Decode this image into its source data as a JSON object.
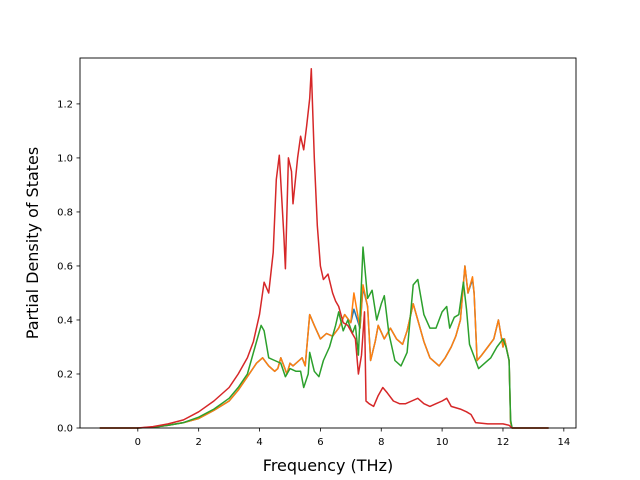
{
  "chart_data": {
    "type": "line",
    "xlabel": "Frequency (THz)",
    "ylabel": "Partial Density of States",
    "xlim": [
      -1.9,
      14.4
    ],
    "ylim": [
      0,
      1.37
    ],
    "xticks": [
      0,
      2,
      4,
      6,
      8,
      10,
      12,
      14
    ],
    "yticks": [
      0.0,
      0.2,
      0.4,
      0.6,
      0.8,
      1.0,
      1.2
    ],
    "xtick_labels": [
      "0",
      "2",
      "4",
      "6",
      "8",
      "10",
      "12",
      "14"
    ],
    "ytick_labels": [
      "0.0",
      "0.2",
      "0.4",
      "0.6",
      "0.8",
      "1.0",
      "1.2"
    ],
    "grid": false,
    "legend": "none",
    "series": [
      {
        "color": "#1f77b4",
        "points": [
          [
            -1.25,
            0
          ],
          [
            0,
            0
          ],
          [
            0.5,
            0.003
          ],
          [
            1,
            0.01
          ],
          [
            1.5,
            0.02
          ],
          [
            2,
            0.035
          ],
          [
            2.5,
            0.065
          ],
          [
            3,
            0.1
          ],
          [
            3.3,
            0.14
          ],
          [
            3.6,
            0.19
          ],
          [
            3.9,
            0.24
          ],
          [
            4.1,
            0.26
          ],
          [
            4.3,
            0.23
          ],
          [
            4.5,
            0.21
          ],
          [
            4.6,
            0.22
          ],
          [
            4.7,
            0.26
          ],
          [
            4.8,
            0.23
          ],
          [
            4.9,
            0.2
          ],
          [
            5.0,
            0.24
          ],
          [
            5.1,
            0.23
          ],
          [
            5.3,
            0.25
          ],
          [
            5.4,
            0.26
          ],
          [
            5.5,
            0.23
          ],
          [
            5.65,
            0.42
          ],
          [
            5.8,
            0.38
          ],
          [
            6.0,
            0.33
          ],
          [
            6.2,
            0.35
          ],
          [
            6.4,
            0.34
          ],
          [
            6.6,
            0.37
          ],
          [
            6.8,
            0.42
          ],
          [
            7.0,
            0.39
          ],
          [
            7.1,
            0.44
          ],
          [
            7.3,
            0.37
          ],
          [
            7.4,
            0.52
          ],
          [
            7.55,
            0.45
          ],
          [
            7.65,
            0.25
          ],
          [
            7.8,
            0.32
          ],
          [
            7.9,
            0.38
          ],
          [
            8.1,
            0.33
          ],
          [
            8.3,
            0.37
          ],
          [
            8.5,
            0.33
          ],
          [
            8.7,
            0.31
          ],
          [
            8.85,
            0.36
          ],
          [
            9.05,
            0.46
          ],
          [
            9.2,
            0.4
          ],
          [
            9.4,
            0.32
          ],
          [
            9.6,
            0.26
          ],
          [
            9.9,
            0.23
          ],
          [
            10.1,
            0.26
          ],
          [
            10.3,
            0.3
          ],
          [
            10.45,
            0.34
          ],
          [
            10.6,
            0.4
          ],
          [
            10.75,
            0.6
          ],
          [
            10.85,
            0.5
          ],
          [
            11.0,
            0.55
          ],
          [
            11.05,
            0.5
          ],
          [
            11.15,
            0.25
          ],
          [
            11.3,
            0.27
          ],
          [
            11.5,
            0.3
          ],
          [
            11.7,
            0.33
          ],
          [
            11.85,
            0.4
          ],
          [
            12.0,
            0.3
          ],
          [
            12.05,
            0.33
          ],
          [
            12.2,
            0.25
          ],
          [
            12.25,
            0.02
          ],
          [
            12.3,
            0.0
          ],
          [
            13.5,
            0.0
          ]
        ]
      },
      {
        "color": "#ff7f0e",
        "points": [
          [
            -1.25,
            0
          ],
          [
            0,
            0
          ],
          [
            0.5,
            0.003
          ],
          [
            1,
            0.01
          ],
          [
            1.5,
            0.02
          ],
          [
            2,
            0.035
          ],
          [
            2.5,
            0.065
          ],
          [
            3,
            0.1
          ],
          [
            3.3,
            0.14
          ],
          [
            3.6,
            0.19
          ],
          [
            3.9,
            0.24
          ],
          [
            4.1,
            0.26
          ],
          [
            4.3,
            0.23
          ],
          [
            4.5,
            0.21
          ],
          [
            4.6,
            0.22
          ],
          [
            4.7,
            0.26
          ],
          [
            4.8,
            0.23
          ],
          [
            4.9,
            0.2
          ],
          [
            5.0,
            0.24
          ],
          [
            5.1,
            0.23
          ],
          [
            5.3,
            0.25
          ],
          [
            5.4,
            0.26
          ],
          [
            5.5,
            0.23
          ],
          [
            5.65,
            0.42
          ],
          [
            5.8,
            0.38
          ],
          [
            6.0,
            0.33
          ],
          [
            6.2,
            0.35
          ],
          [
            6.4,
            0.34
          ],
          [
            6.6,
            0.37
          ],
          [
            6.8,
            0.42
          ],
          [
            7.0,
            0.39
          ],
          [
            7.1,
            0.5
          ],
          [
            7.3,
            0.37
          ],
          [
            7.4,
            0.53
          ],
          [
            7.55,
            0.45
          ],
          [
            7.65,
            0.25
          ],
          [
            7.8,
            0.32
          ],
          [
            7.9,
            0.38
          ],
          [
            8.1,
            0.33
          ],
          [
            8.3,
            0.37
          ],
          [
            8.5,
            0.33
          ],
          [
            8.7,
            0.31
          ],
          [
            8.85,
            0.36
          ],
          [
            9.05,
            0.46
          ],
          [
            9.2,
            0.4
          ],
          [
            9.4,
            0.32
          ],
          [
            9.6,
            0.26
          ],
          [
            9.9,
            0.23
          ],
          [
            10.1,
            0.26
          ],
          [
            10.3,
            0.3
          ],
          [
            10.45,
            0.34
          ],
          [
            10.6,
            0.4
          ],
          [
            10.75,
            0.6
          ],
          [
            10.85,
            0.5
          ],
          [
            11.0,
            0.56
          ],
          [
            11.05,
            0.5
          ],
          [
            11.15,
            0.25
          ],
          [
            11.3,
            0.27
          ],
          [
            11.5,
            0.3
          ],
          [
            11.7,
            0.33
          ],
          [
            11.85,
            0.4
          ],
          [
            12.0,
            0.3
          ],
          [
            12.05,
            0.33
          ],
          [
            12.2,
            0.25
          ],
          [
            12.25,
            0.02
          ],
          [
            12.3,
            0.0
          ],
          [
            13.5,
            0.0
          ]
        ]
      },
      {
        "color": "#2ca02c",
        "points": [
          [
            -1.25,
            0
          ],
          [
            0,
            0
          ],
          [
            0.5,
            0.003
          ],
          [
            1,
            0.01
          ],
          [
            1.5,
            0.02
          ],
          [
            2,
            0.04
          ],
          [
            2.5,
            0.07
          ],
          [
            3,
            0.11
          ],
          [
            3.3,
            0.15
          ],
          [
            3.6,
            0.2
          ],
          [
            3.85,
            0.3
          ],
          [
            4.05,
            0.38
          ],
          [
            4.15,
            0.36
          ],
          [
            4.3,
            0.26
          ],
          [
            4.5,
            0.25
          ],
          [
            4.7,
            0.24
          ],
          [
            4.85,
            0.19
          ],
          [
            5.0,
            0.22
          ],
          [
            5.2,
            0.21
          ],
          [
            5.35,
            0.21
          ],
          [
            5.45,
            0.15
          ],
          [
            5.6,
            0.2
          ],
          [
            5.65,
            0.28
          ],
          [
            5.8,
            0.21
          ],
          [
            5.95,
            0.19
          ],
          [
            6.1,
            0.25
          ],
          [
            6.3,
            0.3
          ],
          [
            6.5,
            0.38
          ],
          [
            6.6,
            0.43
          ],
          [
            6.75,
            0.36
          ],
          [
            6.9,
            0.4
          ],
          [
            7.05,
            0.35
          ],
          [
            7.15,
            0.38
          ],
          [
            7.25,
            0.27
          ],
          [
            7.4,
            0.67
          ],
          [
            7.55,
            0.48
          ],
          [
            7.7,
            0.51
          ],
          [
            7.85,
            0.4
          ],
          [
            8.0,
            0.46
          ],
          [
            8.1,
            0.49
          ],
          [
            8.25,
            0.35
          ],
          [
            8.45,
            0.25
          ],
          [
            8.65,
            0.23
          ],
          [
            8.85,
            0.28
          ],
          [
            9.05,
            0.53
          ],
          [
            9.2,
            0.55
          ],
          [
            9.4,
            0.42
          ],
          [
            9.6,
            0.37
          ],
          [
            9.8,
            0.37
          ],
          [
            10.0,
            0.43
          ],
          [
            10.15,
            0.45
          ],
          [
            10.25,
            0.37
          ],
          [
            10.4,
            0.41
          ],
          [
            10.55,
            0.42
          ],
          [
            10.7,
            0.54
          ],
          [
            10.8,
            0.44
          ],
          [
            10.9,
            0.31
          ],
          [
            11.1,
            0.25
          ],
          [
            11.2,
            0.22
          ],
          [
            11.4,
            0.24
          ],
          [
            11.6,
            0.26
          ],
          [
            11.8,
            0.3
          ],
          [
            12.0,
            0.33
          ],
          [
            12.1,
            0.3
          ],
          [
            12.2,
            0.25
          ],
          [
            12.25,
            0.03
          ],
          [
            12.3,
            0.0
          ],
          [
            13.5,
            0.0
          ]
        ]
      },
      {
        "color": "#d62728",
        "points": [
          [
            -1.25,
            0
          ],
          [
            0,
            0
          ],
          [
            0.5,
            0.005
          ],
          [
            1,
            0.015
          ],
          [
            1.5,
            0.03
          ],
          [
            2,
            0.06
          ],
          [
            2.5,
            0.1
          ],
          [
            3,
            0.15
          ],
          [
            3.3,
            0.2
          ],
          [
            3.6,
            0.26
          ],
          [
            3.8,
            0.32
          ],
          [
            4.0,
            0.42
          ],
          [
            4.15,
            0.54
          ],
          [
            4.3,
            0.5
          ],
          [
            4.45,
            0.65
          ],
          [
            4.55,
            0.92
          ],
          [
            4.65,
            1.01
          ],
          [
            4.8,
            0.71
          ],
          [
            4.85,
            0.59
          ],
          [
            4.95,
            1.0
          ],
          [
            5.05,
            0.95
          ],
          [
            5.1,
            0.83
          ],
          [
            5.25,
            1.0
          ],
          [
            5.35,
            1.08
          ],
          [
            5.45,
            1.03
          ],
          [
            5.55,
            1.12
          ],
          [
            5.65,
            1.22
          ],
          [
            5.7,
            1.33
          ],
          [
            5.8,
            1.0
          ],
          [
            5.9,
            0.75
          ],
          [
            6.0,
            0.6
          ],
          [
            6.1,
            0.55
          ],
          [
            6.25,
            0.57
          ],
          [
            6.4,
            0.5
          ],
          [
            6.5,
            0.47
          ],
          [
            6.6,
            0.45
          ],
          [
            6.75,
            0.39
          ],
          [
            6.9,
            0.38
          ],
          [
            7.05,
            0.35
          ],
          [
            7.15,
            0.33
          ],
          [
            7.25,
            0.2
          ],
          [
            7.35,
            0.27
          ],
          [
            7.45,
            0.43
          ],
          [
            7.5,
            0.1
          ],
          [
            7.6,
            0.09
          ],
          [
            7.75,
            0.08
          ],
          [
            7.9,
            0.12
          ],
          [
            8.05,
            0.15
          ],
          [
            8.2,
            0.13
          ],
          [
            8.4,
            0.1
          ],
          [
            8.6,
            0.09
          ],
          [
            8.8,
            0.09
          ],
          [
            9.0,
            0.1
          ],
          [
            9.2,
            0.11
          ],
          [
            9.4,
            0.09
          ],
          [
            9.6,
            0.08
          ],
          [
            9.8,
            0.09
          ],
          [
            10.0,
            0.1
          ],
          [
            10.15,
            0.11
          ],
          [
            10.3,
            0.08
          ],
          [
            10.6,
            0.07
          ],
          [
            10.8,
            0.06
          ],
          [
            10.95,
            0.05
          ],
          [
            11.1,
            0.02
          ],
          [
            11.5,
            0.015
          ],
          [
            11.8,
            0.015
          ],
          [
            12.0,
            0.015
          ],
          [
            12.2,
            0.01
          ],
          [
            12.25,
            0.005
          ],
          [
            12.3,
            0.0
          ],
          [
            13.5,
            0.0
          ]
        ]
      }
    ]
  }
}
